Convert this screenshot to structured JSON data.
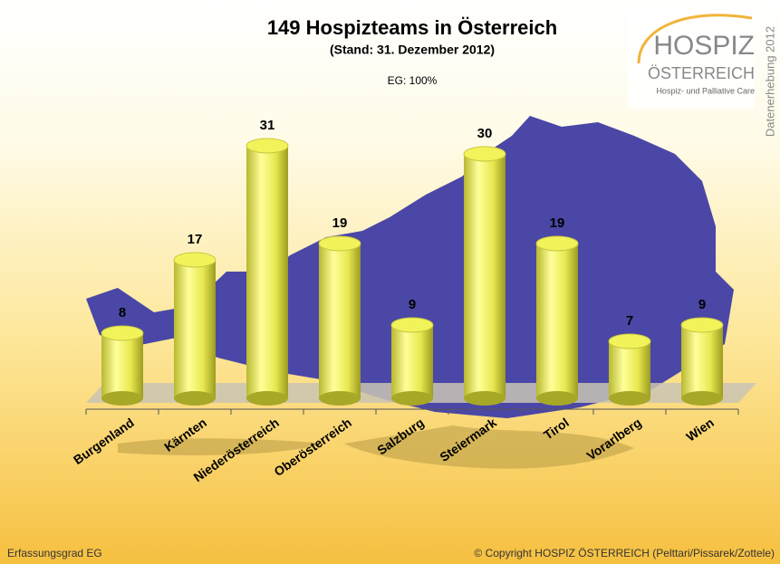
{
  "chart_data": {
    "type": "bar",
    "title": "149 Hospizteams in Österreich",
    "subtitle": "(Stand: 31. Dezember 2012)",
    "annotation": "EG: 100%",
    "categories": [
      "Burgenland",
      "Kärnten",
      "Niederösterreich",
      "Oberösterreich",
      "Salzburg",
      "Steiermark",
      "Tirol",
      "Vorarlberg",
      "Wien"
    ],
    "values": [
      8,
      17,
      31,
      19,
      9,
      30,
      19,
      7,
      9
    ],
    "color": "#f2f25a",
    "logo": {
      "name": "HOSPIZ",
      "country": "ÖSTERREICH",
      "tagline": "Hospiz- und Palliative Care",
      "side": "Datenerhebung 2012"
    },
    "footer_left": "Erfassungsgrad EG",
    "footer_right": "© Copyright HOSPIZ ÖSTERREICH (Pelttari/Pissarek/Zottele)"
  }
}
